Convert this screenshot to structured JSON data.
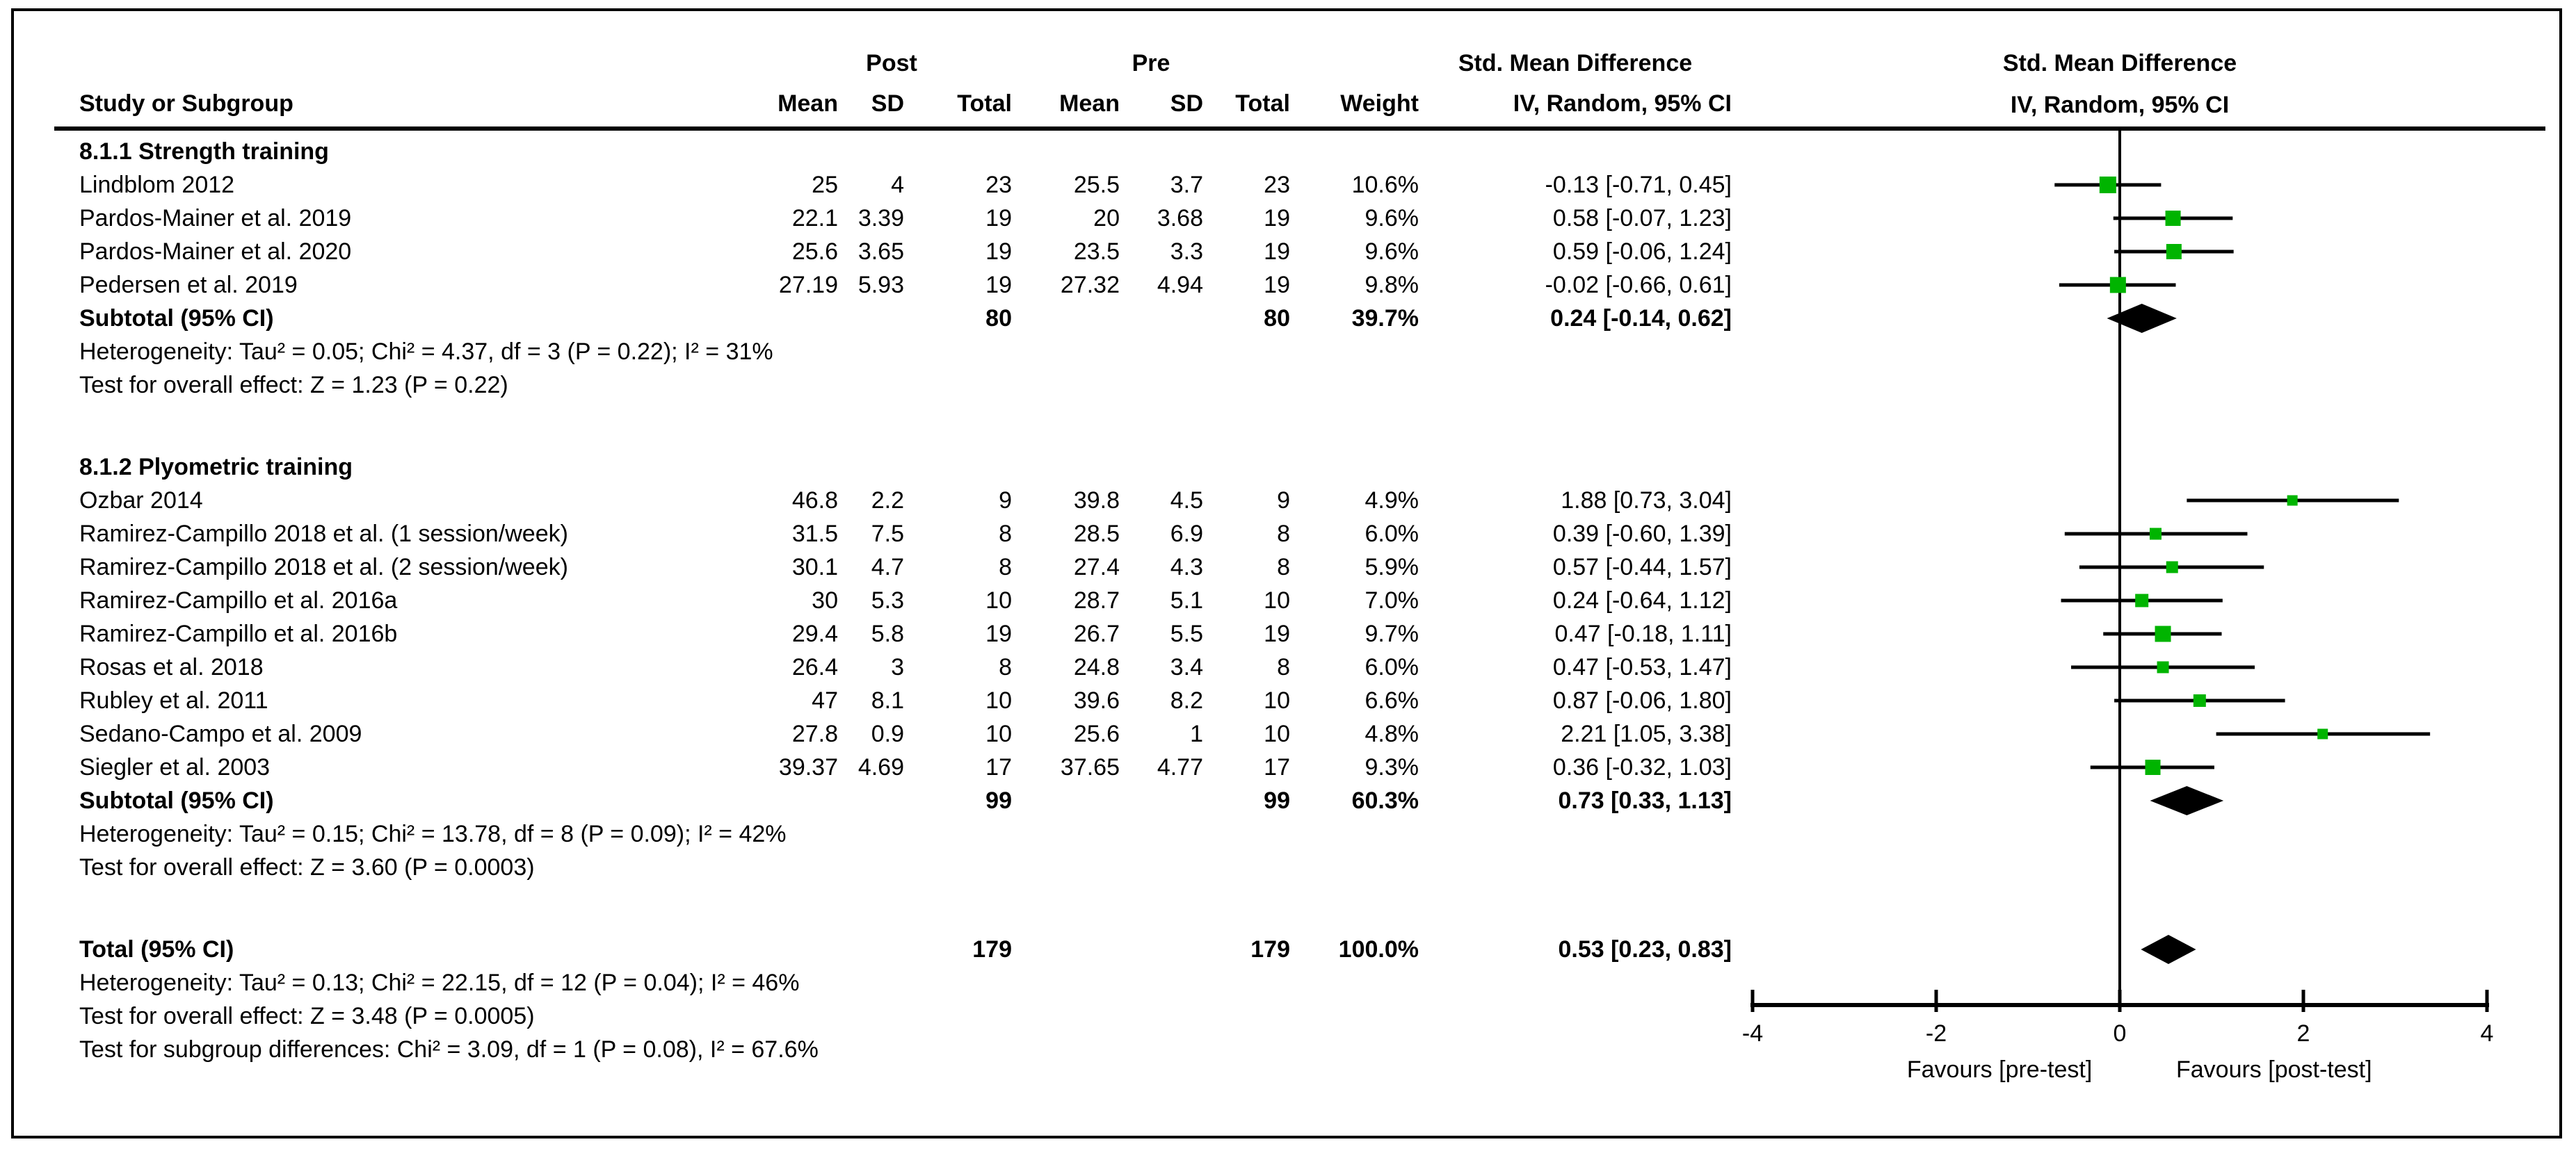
{
  "header": {
    "study_col": "Study or Subgroup",
    "post_group": "Post",
    "pre_group": "Pre",
    "smd_group": "Std. Mean Difference",
    "mean1": "Mean",
    "sd1": "SD",
    "total1": "Total",
    "mean2": "Mean",
    "sd2": "SD",
    "total2": "Total",
    "weight": "Weight",
    "method": "IV, Random, 95% CI",
    "plot_title": "Std. Mean Difference",
    "plot_method": "IV, Random, 95% CI"
  },
  "chart_data": {
    "type": "forest",
    "effect_measure": "Std. Mean Difference",
    "model": "IV, Random, 95% CI",
    "axis": {
      "min": -4,
      "max": 4,
      "ticks": [
        -4,
        -2,
        0,
        2,
        4
      ],
      "tick_labels": [
        "-4",
        "-2",
        "0",
        "2",
        "4"
      ]
    },
    "favours_left": "Favours [pre-test]",
    "favours_right": "Favours [post-test]",
    "marker_color": "#00b400",
    "line_color": "#000000",
    "sections": [
      {
        "heading": "8.1.1 Strength training",
        "studies": [
          {
            "label": "Lindblom 2012",
            "post_mean": "25",
            "post_sd": "4",
            "post_total": "23",
            "pre_mean": "25.5",
            "pre_sd": "3.7",
            "pre_total": "23",
            "weight": "10.6%",
            "ci": "-0.13 [-0.71, 0.45]",
            "est": -0.13,
            "lo": -0.71,
            "hi": 0.45,
            "w": 10.6
          },
          {
            "label": "Pardos-Mainer et al. 2019",
            "post_mean": "22.1",
            "post_sd": "3.39",
            "post_total": "19",
            "pre_mean": "20",
            "pre_sd": "3.68",
            "pre_total": "19",
            "weight": "9.6%",
            "ci": "0.58 [-0.07, 1.23]",
            "est": 0.58,
            "lo": -0.07,
            "hi": 1.23,
            "w": 9.6
          },
          {
            "label": "Pardos-Mainer et al. 2020",
            "post_mean": "25.6",
            "post_sd": "3.65",
            "post_total": "19",
            "pre_mean": "23.5",
            "pre_sd": "3.3",
            "pre_total": "19",
            "weight": "9.6%",
            "ci": "0.59 [-0.06, 1.24]",
            "est": 0.59,
            "lo": -0.06,
            "hi": 1.24,
            "w": 9.6
          },
          {
            "label": "Pedersen et al. 2019",
            "post_mean": "27.19",
            "post_sd": "5.93",
            "post_total": "19",
            "pre_mean": "27.32",
            "pre_sd": "4.94",
            "pre_total": "19",
            "weight": "9.8%",
            "ci": "-0.02 [-0.66, 0.61]",
            "est": -0.02,
            "lo": -0.66,
            "hi": 0.61,
            "w": 9.8
          }
        ],
        "subtotal": {
          "label": "Subtotal (95% CI)",
          "post_total": "80",
          "pre_total": "80",
          "weight": "39.7%",
          "ci": "0.24 [-0.14, 0.62]",
          "est": 0.24,
          "lo": -0.14,
          "hi": 0.62
        },
        "heterogeneity": "Heterogeneity: Tau² = 0.05; Chi² = 4.37, df = 3 (P = 0.22); I² = 31%",
        "overall_effect": "Test for overall effect: Z = 1.23 (P = 0.22)"
      },
      {
        "heading": "8.1.2 Plyometric training",
        "studies": [
          {
            "label": "Ozbar 2014",
            "post_mean": "46.8",
            "post_sd": "2.2",
            "post_total": "9",
            "pre_mean": "39.8",
            "pre_sd": "4.5",
            "pre_total": "9",
            "weight": "4.9%",
            "ci": "1.88 [0.73, 3.04]",
            "est": 1.88,
            "lo": 0.73,
            "hi": 3.04,
            "w": 4.9
          },
          {
            "label": "Ramirez-Campillo 2018 et al. (1 session/week)",
            "post_mean": "31.5",
            "post_sd": "7.5",
            "post_total": "8",
            "pre_mean": "28.5",
            "pre_sd": "6.9",
            "pre_total": "8",
            "weight": "6.0%",
            "ci": "0.39 [-0.60, 1.39]",
            "est": 0.39,
            "lo": -0.6,
            "hi": 1.39,
            "w": 6.0
          },
          {
            "label": "Ramirez-Campillo 2018 et al. (2 session/week)",
            "post_mean": "30.1",
            "post_sd": "4.7",
            "post_total": "8",
            "pre_mean": "27.4",
            "pre_sd": "4.3",
            "pre_total": "8",
            "weight": "5.9%",
            "ci": "0.57 [-0.44, 1.57]",
            "est": 0.57,
            "lo": -0.44,
            "hi": 1.57,
            "w": 5.9
          },
          {
            "label": "Ramirez-Campillo et al. 2016a",
            "post_mean": "30",
            "post_sd": "5.3",
            "post_total": "10",
            "pre_mean": "28.7",
            "pre_sd": "5.1",
            "pre_total": "10",
            "weight": "7.0%",
            "ci": "0.24 [-0.64, 1.12]",
            "est": 0.24,
            "lo": -0.64,
            "hi": 1.12,
            "w": 7.0
          },
          {
            "label": "Ramirez-Campillo et al. 2016b",
            "post_mean": "29.4",
            "post_sd": "5.8",
            "post_total": "19",
            "pre_mean": "26.7",
            "pre_sd": "5.5",
            "pre_total": "19",
            "weight": "9.7%",
            "ci": "0.47 [-0.18, 1.11]",
            "est": 0.47,
            "lo": -0.18,
            "hi": 1.11,
            "w": 9.7
          },
          {
            "label": "Rosas et al. 2018",
            "post_mean": "26.4",
            "post_sd": "3",
            "post_total": "8",
            "pre_mean": "24.8",
            "pre_sd": "3.4",
            "pre_total": "8",
            "weight": "6.0%",
            "ci": "0.47 [-0.53, 1.47]",
            "est": 0.47,
            "lo": -0.53,
            "hi": 1.47,
            "w": 6.0
          },
          {
            "label": "Rubley et al. 2011",
            "post_mean": "47",
            "post_sd": "8.1",
            "post_total": "10",
            "pre_mean": "39.6",
            "pre_sd": "8.2",
            "pre_total": "10",
            "weight": "6.6%",
            "ci": "0.87 [-0.06, 1.80]",
            "est": 0.87,
            "lo": -0.06,
            "hi": 1.8,
            "w": 6.6
          },
          {
            "label": "Sedano-Campo et al. 2009",
            "post_mean": "27.8",
            "post_sd": "0.9",
            "post_total": "10",
            "pre_mean": "25.6",
            "pre_sd": "1",
            "pre_total": "10",
            "weight": "4.8%",
            "ci": "2.21 [1.05, 3.38]",
            "est": 2.21,
            "lo": 1.05,
            "hi": 3.38,
            "w": 4.8
          },
          {
            "label": "Siegler et al. 2003",
            "post_mean": "39.37",
            "post_sd": "4.69",
            "post_total": "17",
            "pre_mean": "37.65",
            "pre_sd": "4.77",
            "pre_total": "17",
            "weight": "9.3%",
            "ci": "0.36 [-0.32, 1.03]",
            "est": 0.36,
            "lo": -0.32,
            "hi": 1.03,
            "w": 9.3
          }
        ],
        "subtotal": {
          "label": "Subtotal (95% CI)",
          "post_total": "99",
          "pre_total": "99",
          "weight": "60.3%",
          "ci": "0.73 [0.33, 1.13]",
          "est": 0.73,
          "lo": 0.33,
          "hi": 1.13
        },
        "heterogeneity": "Heterogeneity: Tau² = 0.15; Chi² = 13.78, df = 8 (P = 0.09); I² = 42%",
        "overall_effect": "Test for overall effect: Z = 3.60 (P = 0.0003)"
      }
    ],
    "total": {
      "label": "Total (95% CI)",
      "post_total": "179",
      "pre_total": "179",
      "weight": "100.0%",
      "ci": "0.53 [0.23, 0.83]",
      "est": 0.53,
      "lo": 0.23,
      "hi": 0.83
    },
    "total_heterogeneity": "Heterogeneity: Tau² = 0.13; Chi² = 22.15, df = 12 (P = 0.04); I² = 46%",
    "total_overall_effect": "Test for overall effect: Z = 3.48 (P = 0.0005)",
    "subgroup_differences": "Test for subgroup differences: Chi² = 3.09, df = 1 (P = 0.08), I² = 67.6%"
  }
}
